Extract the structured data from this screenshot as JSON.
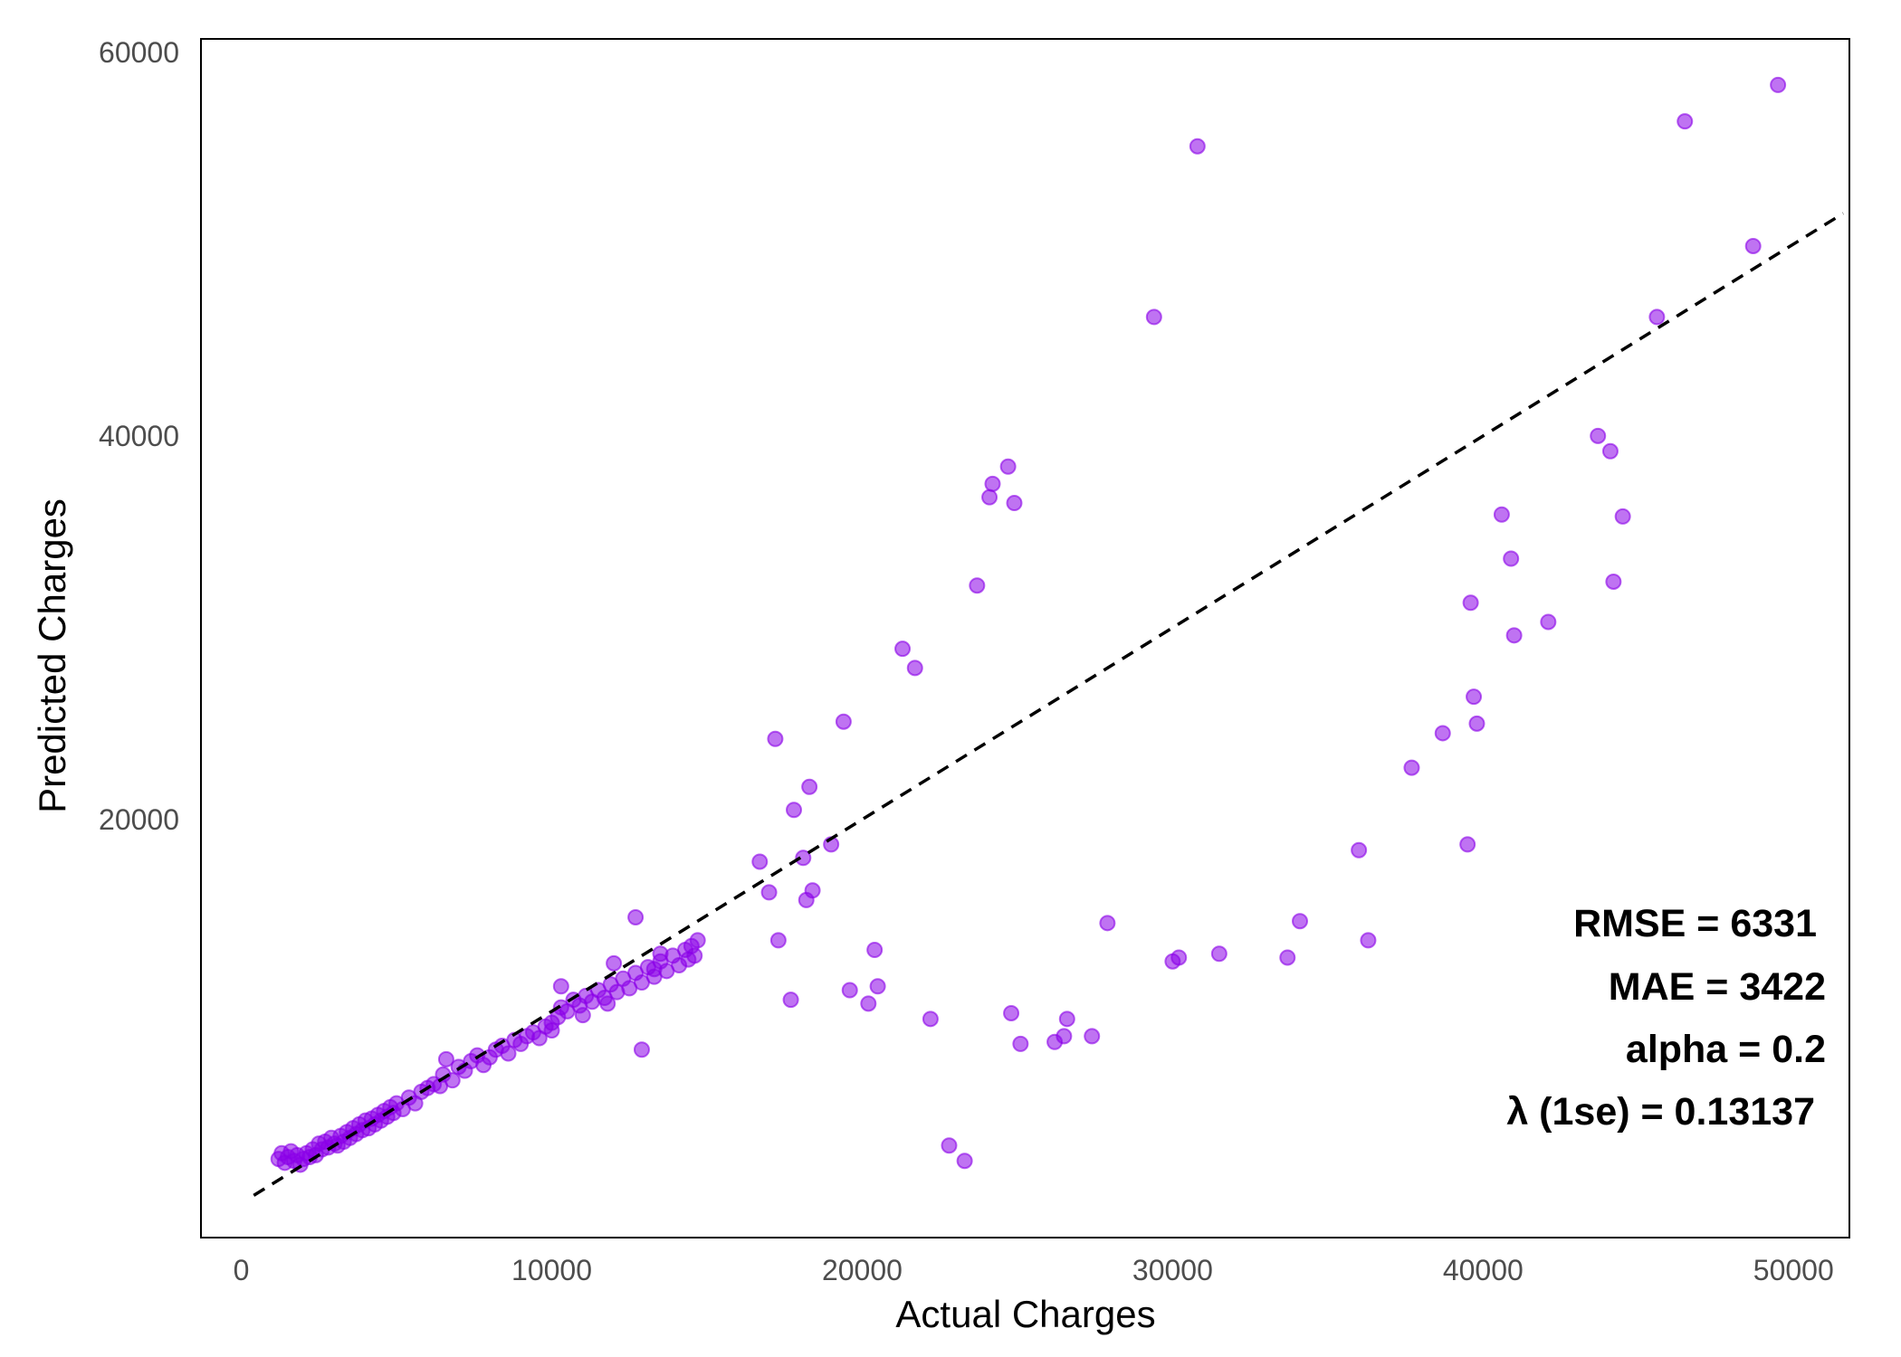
{
  "colors": {
    "points": "#8B00E8",
    "diagonal": "#000000",
    "frame": "#000000",
    "background": "#ffffff"
  },
  "chart_data": {
    "type": "scatter",
    "title": "",
    "xlabel": "Actual Charges",
    "ylabel": "Predicted Charges",
    "xlim": [
      -1300,
      51800
    ],
    "ylim": [
      -1800,
      60700
    ],
    "x_ticks": [
      0,
      10000,
      20000,
      30000,
      40000,
      50000
    ],
    "x_tick_labels": [
      "0",
      "10000",
      "20000",
      "30000",
      "40000",
      "50000"
    ],
    "y_ticks": [
      20000,
      40000,
      60000
    ],
    "y_tick_labels": [
      "20000",
      "40000",
      "60000"
    ],
    "grid": false,
    "reference_line": "y = x (dashed)",
    "annotations": [
      "RMSE = 6331",
      "MAE  = 3422",
      "alpha = 0.2",
      "λ (1se) = 0.13137"
    ],
    "points": [
      [
        1200,
        2300
      ],
      [
        1300,
        2600
      ],
      [
        1400,
        2100
      ],
      [
        1500,
        2400
      ],
      [
        1600,
        2700
      ],
      [
        1700,
        2200
      ],
      [
        1800,
        2500
      ],
      [
        1900,
        2000
      ],
      [
        2000,
        2300
      ],
      [
        2100,
        2600
      ],
      [
        2200,
        2400
      ],
      [
        2300,
        2800
      ],
      [
        2400,
        2500
      ],
      [
        2500,
        3100
      ],
      [
        2600,
        2800
      ],
      [
        2700,
        3200
      ],
      [
        2800,
        2900
      ],
      [
        2900,
        3400
      ],
      [
        3000,
        3100
      ],
      [
        3100,
        3000
      ],
      [
        3200,
        3500
      ],
      [
        3300,
        3200
      ],
      [
        3400,
        3700
      ],
      [
        3500,
        3400
      ],
      [
        3600,
        3900
      ],
      [
        3700,
        3600
      ],
      [
        3800,
        4100
      ],
      [
        3900,
        3800
      ],
      [
        4000,
        4300
      ],
      [
        4100,
        3900
      ],
      [
        4200,
        4400
      ],
      [
        4300,
        4100
      ],
      [
        4400,
        4600
      ],
      [
        4500,
        4300
      ],
      [
        4600,
        4800
      ],
      [
        4700,
        4500
      ],
      [
        4800,
        5000
      ],
      [
        4900,
        4700
      ],
      [
        5000,
        5200
      ],
      [
        5200,
        4900
      ],
      [
        5400,
        5500
      ],
      [
        5600,
        5200
      ],
      [
        5800,
        5800
      ],
      [
        6000,
        6000
      ],
      [
        6200,
        6200
      ],
      [
        6400,
        6100
      ],
      [
        6500,
        6700
      ],
      [
        6600,
        7500
      ],
      [
        6800,
        6400
      ],
      [
        7000,
        7100
      ],
      [
        7200,
        6900
      ],
      [
        7400,
        7400
      ],
      [
        7600,
        7700
      ],
      [
        7800,
        7200
      ],
      [
        8000,
        7600
      ],
      [
        8200,
        8000
      ],
      [
        8400,
        8200
      ],
      [
        8600,
        7800
      ],
      [
        8800,
        8500
      ],
      [
        9000,
        8300
      ],
      [
        9200,
        8700
      ],
      [
        9400,
        8900
      ],
      [
        9600,
        8600
      ],
      [
        9800,
        9200
      ],
      [
        10000,
        9400
      ],
      [
        10200,
        9700
      ],
      [
        10300,
        10200
      ],
      [
        10500,
        10000
      ],
      [
        10700,
        10600
      ],
      [
        10900,
        10300
      ],
      [
        11100,
        10800
      ],
      [
        11300,
        10500
      ],
      [
        11500,
        11100
      ],
      [
        11700,
        10700
      ],
      [
        11900,
        11400
      ],
      [
        12100,
        11000
      ],
      [
        12300,
        11700
      ],
      [
        12500,
        11200
      ],
      [
        12700,
        12000
      ],
      [
        12900,
        11500
      ],
      [
        13100,
        12300
      ],
      [
        13300,
        11800
      ],
      [
        13500,
        12600
      ],
      [
        13700,
        12100
      ],
      [
        13900,
        12900
      ],
      [
        14100,
        12400
      ],
      [
        14300,
        13200
      ],
      [
        14400,
        12700
      ],
      [
        14500,
        13400
      ],
      [
        14600,
        12900
      ],
      [
        14700,
        13700
      ],
      [
        10000,
        9000
      ],
      [
        10300,
        11300
      ],
      [
        11000,
        9800
      ],
      [
        11800,
        10400
      ],
      [
        12000,
        12500
      ],
      [
        12700,
        14900
      ],
      [
        12900,
        8000
      ],
      [
        13300,
        12200
      ],
      [
        13500,
        13000
      ],
      [
        16700,
        17800
      ],
      [
        17000,
        16200
      ],
      [
        17200,
        24200
      ],
      [
        17300,
        13700
      ],
      [
        17700,
        10600
      ],
      [
        17800,
        20500
      ],
      [
        18100,
        18000
      ],
      [
        18300,
        21700
      ],
      [
        18400,
        16300
      ],
      [
        19000,
        18700
      ],
      [
        19400,
        25100
      ],
      [
        19600,
        11100
      ],
      [
        20200,
        10400
      ],
      [
        20400,
        13200
      ],
      [
        20500,
        11300
      ],
      [
        21300,
        28900
      ],
      [
        21700,
        27900
      ],
      [
        22200,
        9600
      ],
      [
        23700,
        32200
      ],
      [
        24100,
        36800
      ],
      [
        24200,
        37500
      ],
      [
        24700,
        38400
      ],
      [
        24800,
        9900
      ],
      [
        25100,
        8300
      ],
      [
        26200,
        8400
      ],
      [
        26500,
        8700
      ],
      [
        26600,
        9600
      ],
      [
        27400,
        8700
      ],
      [
        27900,
        14600
      ],
      [
        29400,
        46200
      ],
      [
        30000,
        12600
      ],
      [
        30200,
        12800
      ],
      [
        30800,
        55100
      ],
      [
        31500,
        13000
      ],
      [
        33700,
        12800
      ],
      [
        34100,
        14700
      ],
      [
        36000,
        18400
      ],
      [
        36300,
        13700
      ],
      [
        37700,
        22700
      ],
      [
        38700,
        24500
      ],
      [
        39500,
        18700
      ],
      [
        39600,
        31300
      ],
      [
        39700,
        26400
      ],
      [
        39800,
        25000
      ],
      [
        40600,
        35900
      ],
      [
        40900,
        33600
      ],
      [
        41000,
        29600
      ],
      [
        42100,
        30300
      ],
      [
        43700,
        40000
      ],
      [
        44100,
        39200
      ],
      [
        44200,
        32400
      ],
      [
        44500,
        35800
      ],
      [
        45600,
        46200
      ],
      [
        46500,
        56400
      ],
      [
        48700,
        49900
      ],
      [
        49500,
        58300
      ],
      [
        24900,
        36500
      ],
      [
        18200,
        15800
      ],
      [
        22800,
        3000
      ],
      [
        23300,
        2200
      ]
    ]
  }
}
